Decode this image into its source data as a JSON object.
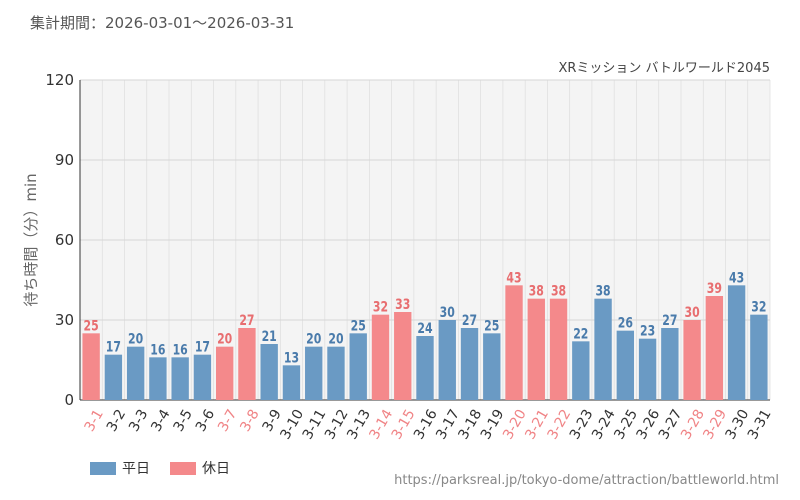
{
  "header": {
    "period": "集計期間：2026-03-01～2026-03-31"
  },
  "source_url": "https://parksreal.jp/tokyo-dome/attraction/battleworld.html",
  "colors": {
    "weekday": "#6a9ac4",
    "holiday": "#f4898b",
    "plot_bg": "#f4f4f4",
    "grid": "#dddddd",
    "axis_text": "#333333"
  },
  "legend": [
    {
      "key": "weekday",
      "label": "平日"
    },
    {
      "key": "holiday",
      "label": "休日"
    }
  ],
  "chart_data": {
    "type": "bar",
    "title": "XRミッション バトルワールド2045",
    "ylabel": "待ち時間（分）min",
    "xlabel": "",
    "ylim": [
      0,
      120
    ],
    "yticks": [
      0,
      30,
      60,
      90,
      120
    ],
    "grid": true,
    "legend_position": "bottom-left",
    "categories": [
      "3-1",
      "3-2",
      "3-3",
      "3-4",
      "3-5",
      "3-6",
      "3-7",
      "3-8",
      "3-9",
      "3-10",
      "3-11",
      "3-12",
      "3-13",
      "3-14",
      "3-15",
      "3-16",
      "3-17",
      "3-18",
      "3-19",
      "3-20",
      "3-21",
      "3-22",
      "3-23",
      "3-24",
      "3-25",
      "3-26",
      "3-27",
      "3-28",
      "3-29",
      "3-30",
      "3-31"
    ],
    "values": [
      25,
      17,
      20,
      16,
      16,
      17,
      20,
      27,
      21,
      13,
      20,
      20,
      25,
      32,
      33,
      24,
      30,
      27,
      25,
      43,
      38,
      38,
      22,
      38,
      26,
      23,
      27,
      30,
      39,
      43,
      32
    ],
    "day_type": [
      "holiday",
      "weekday",
      "weekday",
      "weekday",
      "weekday",
      "weekday",
      "holiday",
      "holiday",
      "weekday",
      "weekday",
      "weekday",
      "weekday",
      "weekday",
      "holiday",
      "holiday",
      "weekday",
      "weekday",
      "weekday",
      "weekday",
      "holiday",
      "holiday",
      "holiday",
      "weekday",
      "weekday",
      "weekday",
      "weekday",
      "weekday",
      "holiday",
      "holiday",
      "weekday",
      "weekday"
    ]
  }
}
